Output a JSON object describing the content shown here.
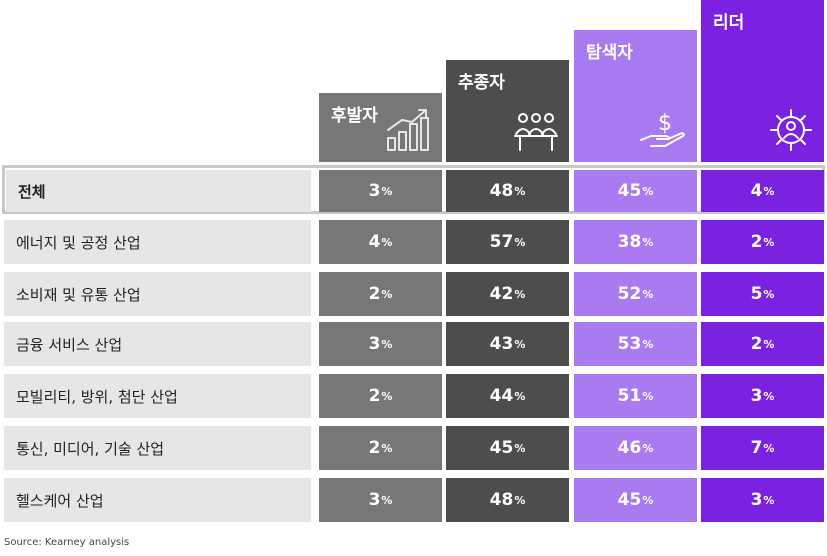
{
  "chart_data": {
    "type": "table",
    "columns": [
      {
        "label": "후발자",
        "icon": "bar-chart-growth-icon",
        "color": "#777777"
      },
      {
        "label": "추종자",
        "icon": "people-group-icon",
        "color": "#4d4d4d"
      },
      {
        "label": "탐색자",
        "icon": "dollar-hand-icon",
        "color": "#a97af0"
      },
      {
        "label": "리더",
        "icon": "gear-person-icon",
        "color": "#7a22e0"
      }
    ],
    "rows": [
      {
        "label": "전체",
        "values": [
          3,
          48,
          45,
          4
        ]
      },
      {
        "label": "에너지 및 공정 산업",
        "values": [
          4,
          57,
          38,
          2
        ]
      },
      {
        "label": "소비재 및 유통 산업",
        "values": [
          2,
          42,
          52,
          5
        ]
      },
      {
        "label": "금융 서비스 산업",
        "values": [
          3,
          43,
          53,
          2
        ]
      },
      {
        "label": "모빌리티, 방위, 첨단 산업",
        "values": [
          2,
          44,
          51,
          3
        ]
      },
      {
        "label": "통신, 미디어, 기술 산업",
        "values": [
          2,
          45,
          46,
          7
        ]
      },
      {
        "label": "헬스케어 산업",
        "values": [
          3,
          48,
          45,
          3
        ]
      }
    ],
    "unit": "%"
  },
  "source": "Source: Kearney analysis"
}
